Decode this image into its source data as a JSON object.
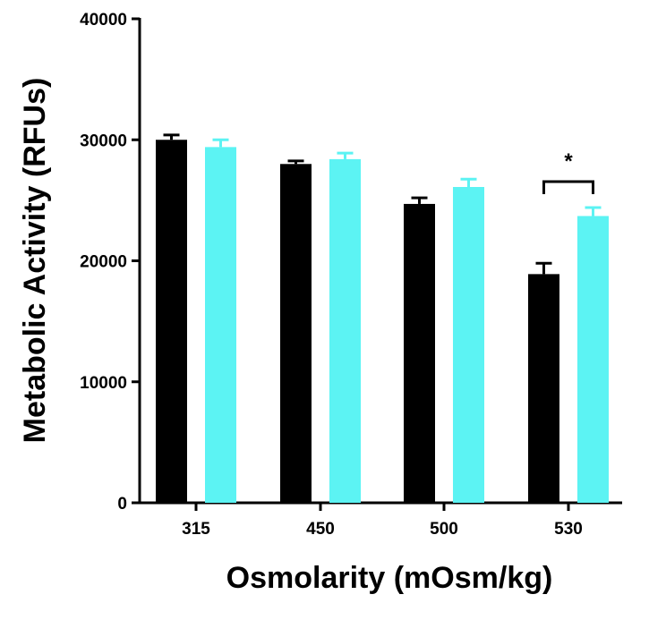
{
  "chart_data": {
    "type": "bar",
    "title": "",
    "xlabel": "Osmolarity (mOsm/kg)",
    "ylabel": "Metabolic Activity (RFUs)",
    "ylim": [
      0,
      40000
    ],
    "yticks": [
      0,
      10000,
      20000,
      30000,
      40000
    ],
    "ytick_labels": [
      "0",
      "10000",
      "20000",
      "30000",
      "40000"
    ],
    "categories": [
      "315",
      "450",
      "500",
      "530"
    ],
    "series": [
      {
        "name": "Series 1",
        "color": "#000000",
        "values": [
          30000,
          28000,
          24700,
          18900
        ],
        "errors": [
          400,
          250,
          500,
          900
        ]
      },
      {
        "name": "Series 2",
        "color": "#5CF3F3",
        "values": [
          29400,
          28400,
          26100,
          23700
        ],
        "errors": [
          600,
          500,
          650,
          700
        ]
      }
    ],
    "annotations": [
      {
        "category": "530",
        "text": "*"
      }
    ],
    "grid": false
  }
}
